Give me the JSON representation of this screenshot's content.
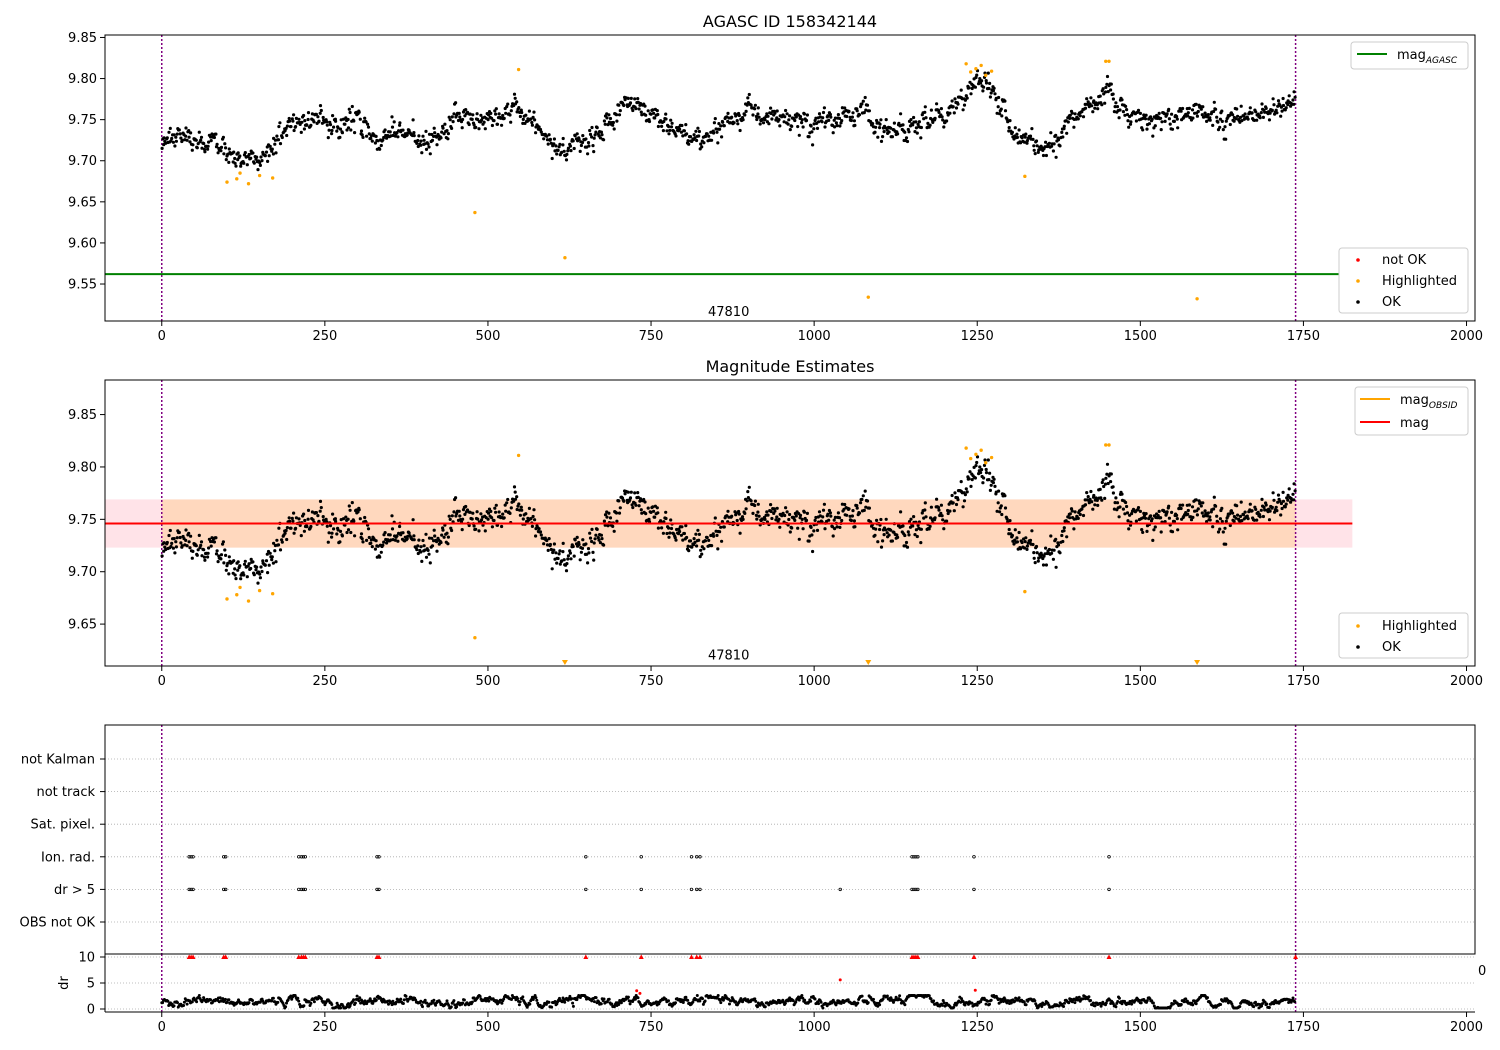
{
  "chart_data": [
    {
      "type": "scatter",
      "title": "AGASC ID 158342144",
      "xlim": [
        -87,
        2013
      ],
      "ylim": [
        9.505,
        9.853
      ],
      "xticks": [
        0,
        250,
        500,
        750,
        1000,
        1250,
        1500,
        1750,
        2000
      ],
      "yticks": [
        9.55,
        9.6,
        9.65,
        9.7,
        9.75,
        9.8,
        9.85
      ],
      "grid": false,
      "obs_boundaries": [
        0,
        1738
      ],
      "obs_label": {
        "text": "47810",
        "x": 869,
        "y": 9.516
      },
      "reference_line": {
        "name": "mag",
        "subscript": "AGASC",
        "value": 9.562,
        "color": "#008000"
      },
      "legend_lines": {
        "position": "top-right",
        "entries": [
          {
            "name": "mag",
            "subscript": "AGASC",
            "color": "#008000"
          }
        ]
      },
      "legend_points": {
        "position": "bottom-right",
        "entries": [
          {
            "name": "not OK",
            "color": "#ff0000"
          },
          {
            "name": "Highlighted",
            "color": "#ffa500"
          },
          {
            "name": "OK",
            "color": "#000000"
          }
        ]
      },
      "series": [
        {
          "name": "OK",
          "color": "#000000",
          "trend_x": [
            0,
            25,
            50,
            75,
            100,
            125,
            150,
            175,
            200,
            225,
            250,
            275,
            300,
            325,
            350,
            375,
            400,
            425,
            450,
            475,
            500,
            525,
            550,
            575,
            600,
            625,
            650,
            675,
            700,
            725,
            750,
            775,
            800,
            825,
            850,
            875,
            900,
            925,
            950,
            975,
            1000,
            1025,
            1050,
            1075,
            1100,
            1125,
            1150,
            1175,
            1200,
            1225,
            1250,
            1275,
            1300,
            1325,
            1350,
            1375,
            1400,
            1425,
            1450,
            1475,
            1500,
            1525,
            1550,
            1575,
            1600,
            1625,
            1650,
            1675,
            1700,
            1725,
            1738
          ],
          "trend_y": [
            9.72,
            9.735,
            9.725,
            9.72,
            9.71,
            9.7,
            9.705,
            9.725,
            9.745,
            9.755,
            9.75,
            9.74,
            9.755,
            9.725,
            9.735,
            9.73,
            9.72,
            9.735,
            9.755,
            9.75,
            9.745,
            9.755,
            9.76,
            9.74,
            9.72,
            9.715,
            9.725,
            9.74,
            9.76,
            9.765,
            9.755,
            9.745,
            9.735,
            9.72,
            9.74,
            9.75,
            9.76,
            9.755,
            9.75,
            9.745,
            9.745,
            9.75,
            9.755,
            9.76,
            9.74,
            9.735,
            9.745,
            9.745,
            9.755,
            9.775,
            9.795,
            9.79,
            9.74,
            9.725,
            9.715,
            9.72,
            9.75,
            9.77,
            9.785,
            9.76,
            9.755,
            9.75,
            9.745,
            9.765,
            9.755,
            9.75,
            9.755,
            9.76,
            9.765,
            9.77,
            9.77
          ],
          "spread": 0.011,
          "count": 1500
        },
        {
          "name": "Highlighted",
          "color": "#ffa500",
          "x": [
            100,
            115,
            120,
            133,
            150,
            170,
            480,
            547,
            618,
            1083,
            1233,
            1240,
            1248,
            1256,
            1263,
            1272,
            1323,
            1447,
            1452,
            1587
          ],
          "y": [
            9.674,
            9.678,
            9.685,
            9.672,
            9.682,
            9.679,
            9.637,
            9.811,
            9.582,
            9.534,
            9.818,
            9.808,
            9.812,
            9.816,
            9.804,
            9.809,
            9.681,
            9.821,
            9.821,
            9.532
          ]
        },
        {
          "name": "not OK",
          "color": "#ff0000",
          "x": [],
          "y": []
        }
      ]
    },
    {
      "type": "scatter",
      "title": "Magnitude Estimates",
      "xlim": [
        -87,
        2013
      ],
      "ylim": [
        9.61,
        9.883
      ],
      "xticks": [
        0,
        250,
        500,
        750,
        1000,
        1250,
        1500,
        1750,
        2000
      ],
      "yticks": [
        9.65,
        9.7,
        9.75,
        9.8,
        9.85
      ],
      "grid": false,
      "obs_boundaries": [
        0,
        1738
      ],
      "obs_label": {
        "text": "47810",
        "x": 869,
        "y": 9.62
      },
      "mag_line": {
        "name": "mag",
        "value": 9.746,
        "color": "#ff0000",
        "band": [
          9.723,
          9.769
        ],
        "band_color": "#ffc0cb"
      },
      "mag_obsid": {
        "name": "mag",
        "subscript": "OBSID",
        "value": 9.746,
        "band": [
          9.723,
          9.769
        ],
        "color": "#ffa500",
        "x_range": [
          0,
          1738
        ]
      },
      "legend_lines": {
        "position": "top-right",
        "entries": [
          {
            "name": "mag",
            "subscript": "OBSID",
            "color": "#ffa500"
          },
          {
            "name": "mag",
            "subscript": "",
            "color": "#ff0000"
          }
        ]
      },
      "legend_points": {
        "position": "bottom-right",
        "entries": [
          {
            "name": "Highlighted",
            "color": "#ffa500"
          },
          {
            "name": "OK",
            "color": "#000000"
          }
        ]
      },
      "offscale_markers_x": [
        618,
        1083,
        1587
      ]
    },
    {
      "type": "scatter",
      "title": "",
      "xlim": [
        -87,
        2013
      ],
      "xticks": [
        0,
        250,
        500,
        750,
        1000,
        1250,
        1500,
        1750,
        2000
      ],
      "obs_boundaries": [
        0,
        1738
      ],
      "flag_rows": [
        "not Kalman",
        "not track",
        "Sat. pixel.",
        "Ion. rad.",
        "dr > 5",
        "OBS not OK"
      ],
      "flags": {
        "Ion. rad.": [
          42,
          45,
          48,
          95,
          98,
          210,
          214,
          217,
          220,
          330,
          333,
          650,
          735,
          812,
          820,
          825,
          1150,
          1153,
          1156,
          1159,
          1245,
          1452
        ],
        "dr > 5": [
          42,
          45,
          48,
          95,
          98,
          210,
          214,
          217,
          220,
          330,
          333,
          650,
          735,
          812,
          820,
          825,
          1040,
          1150,
          1153,
          1156,
          1159,
          1245,
          1452
        ]
      },
      "dr_panel": {
        "ylabel": "dr",
        "yticks": [
          0,
          5,
          10
        ],
        "ylim": [
          -0.5,
          10.5
        ],
        "clip_value": 10,
        "clipped_x": [
          42,
          45,
          48,
          95,
          98,
          210,
          214,
          217,
          220,
          330,
          333,
          650,
          735,
          812,
          820,
          825,
          1150,
          1153,
          1156,
          1159,
          1245,
          1452,
          1738
        ],
        "outliers": [
          {
            "x": 728,
            "y": 3.5
          },
          {
            "x": 733,
            "y": 3.0
          },
          {
            "x": 1040,
            "y": 5.6
          },
          {
            "x": 1247,
            "y": 3.6
          }
        ],
        "typical": [
          0.5,
          2.5
        ]
      },
      "overflow_tick_label": "0"
    }
  ]
}
